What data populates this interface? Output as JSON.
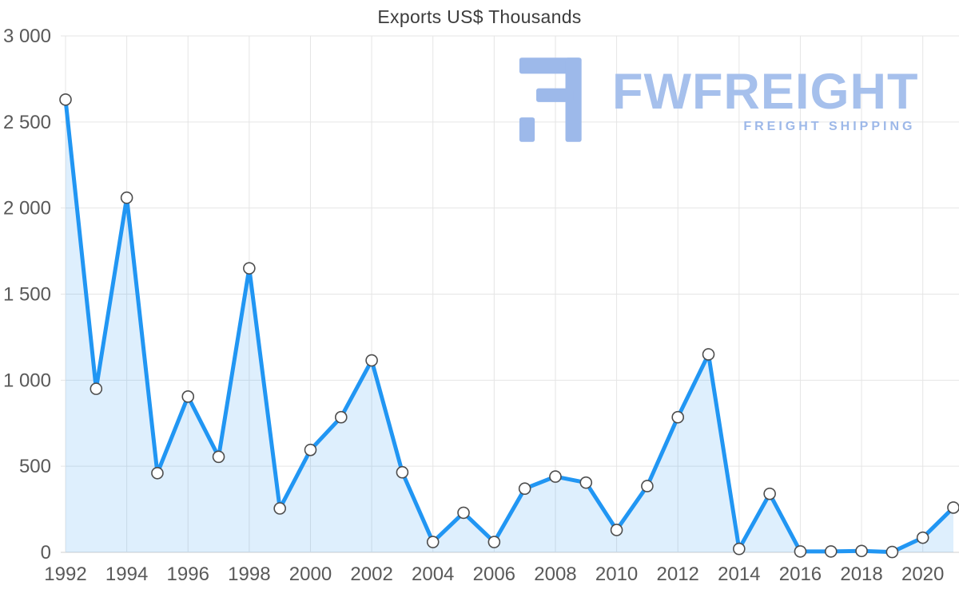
{
  "chart_data": {
    "type": "area",
    "title": "Exports US$ Thousands",
    "xlabel": "",
    "ylabel": "",
    "x": [
      1992,
      1993,
      1994,
      1995,
      1996,
      1997,
      1998,
      1999,
      2000,
      2001,
      2002,
      2003,
      2004,
      2005,
      2006,
      2007,
      2008,
      2009,
      2010,
      2011,
      2012,
      2013,
      2014,
      2015,
      2016,
      2017,
      2018,
      2019,
      2020,
      2021
    ],
    "values": [
      2630,
      950,
      2060,
      460,
      905,
      555,
      1650,
      255,
      595,
      785,
      1115,
      465,
      60,
      230,
      60,
      370,
      440,
      405,
      130,
      385,
      785,
      1150,
      20,
      340,
      5,
      5,
      8,
      2,
      85,
      260
    ],
    "ylim": [
      0,
      3000
    ],
    "y_tick_step": 500,
    "y_tick_labels": [
      "0",
      "500",
      "1 000",
      "1 500",
      "2 000",
      "2 500",
      "3 000"
    ],
    "x_tick_labels": [
      "1992",
      "1994",
      "1996",
      "1998",
      "2000",
      "2002",
      "2004",
      "2006",
      "2008",
      "2010",
      "2012",
      "2014",
      "2016",
      "2018",
      "2020"
    ],
    "x_tick_every": 2,
    "grid": true,
    "legend": "none",
    "line_color": "#2196f3",
    "area_fill_color": "#2196f3",
    "area_fill_opacity": 0.15,
    "marker_fill": "#ffffff",
    "marker_stroke": "#4d4d4d",
    "grid_color": "#e5e5e5",
    "axis_color": "#cfcfcf"
  },
  "watermark": {
    "brand": "FWFREIGHT",
    "tagline": "FREIGHT SHIPPING",
    "color": "#a6c0ec"
  }
}
